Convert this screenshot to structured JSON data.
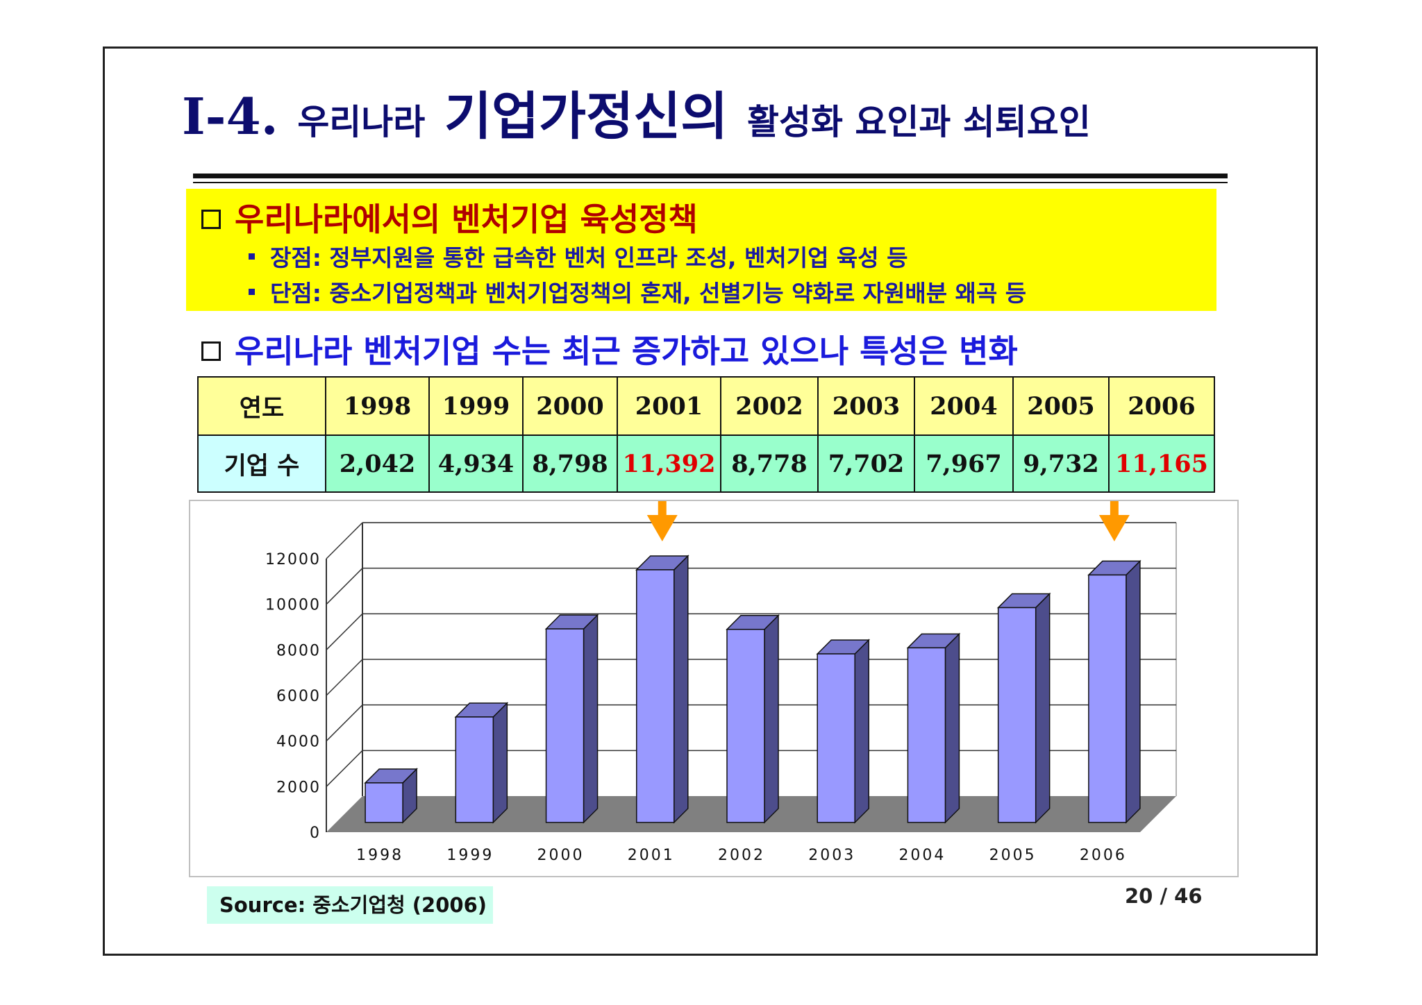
{
  "title": {
    "number": "I-4.",
    "part1": "우리나라",
    "part2": "기업가정신의",
    "part3": "활성화 요인과 쇠퇴요인"
  },
  "section1": {
    "heading": "우리나라에서의 벤처기업 육성정책",
    "bullets": [
      "장점: 정부지원을 통한 급속한 벤처 인프라 조성, 벤처기업 육성 등",
      "단점:  중소기업정책과 벤처기업정책의 혼재, 선별기능 약화로 자원배분 왜곡 등"
    ]
  },
  "section2": {
    "heading": "우리나라 벤처기업 수는 최근 증가하고 있으나 특성은 변화"
  },
  "table": {
    "year_label": "연도",
    "count_label": "기업 수",
    "years": [
      "1998",
      "1999",
      "2000",
      "2001",
      "2002",
      "2003",
      "2004",
      "2005",
      "2006"
    ],
    "counts": [
      "2,042",
      "4,934",
      "8,798",
      "11,392",
      "8,778",
      "7,702",
      "7,967",
      "9,732",
      "11,165"
    ],
    "highlighted": [
      "2001",
      "2006"
    ],
    "highlight_color": "#e00000"
  },
  "chart_data": {
    "type": "bar",
    "categories": [
      "1998",
      "1999",
      "2000",
      "2001",
      "2002",
      "2003",
      "2004",
      "2005",
      "2006"
    ],
    "values": [
      2042,
      4934,
      8798,
      11392,
      8778,
      7702,
      7967,
      9732,
      11165
    ],
    "ylim": [
      0,
      12000
    ],
    "yticks": [
      0,
      2000,
      4000,
      6000,
      8000,
      10000,
      12000
    ],
    "grid": true,
    "three_d": true,
    "bar_color": "#9999ff",
    "arrow_markers": [
      "2001",
      "2006"
    ],
    "arrow_color": "#ff9900"
  },
  "source": "Source: 중소기업청 (2006)",
  "page_number": "20 / 46"
}
